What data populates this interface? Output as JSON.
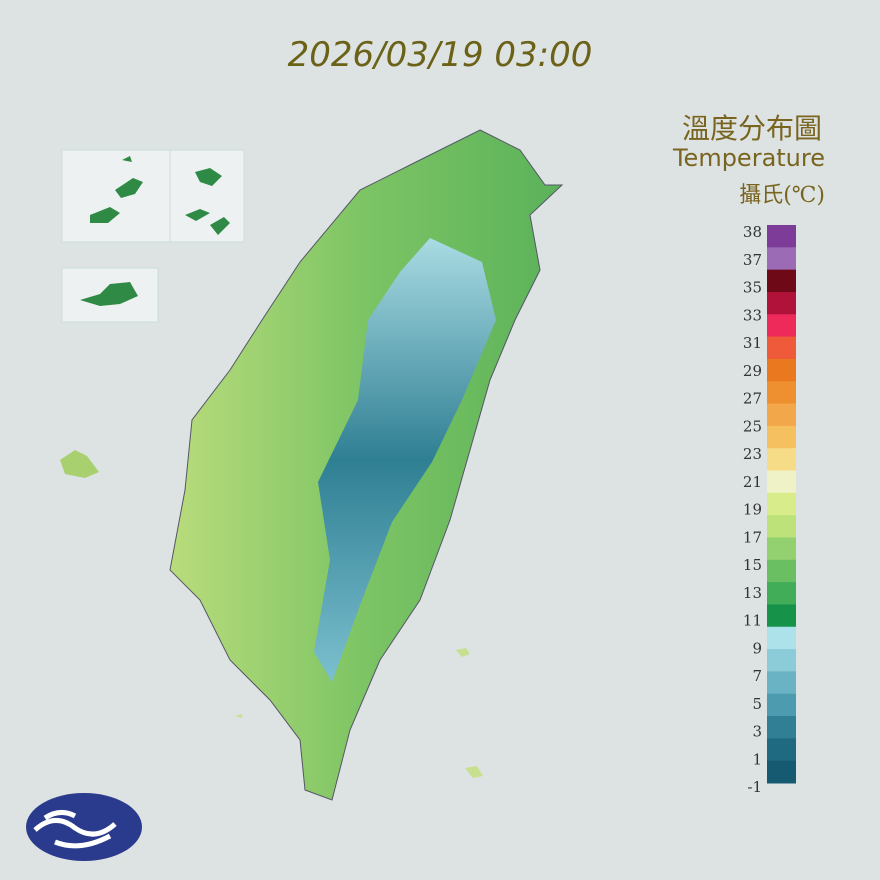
{
  "header": {
    "timestamp": "2026/03/19 03:00",
    "title": "溫度分布圖",
    "subtitle": "Temperature",
    "unit": "攝氏(℃)"
  },
  "legend": {
    "ticks": [
      38,
      37,
      35,
      33,
      31,
      29,
      27,
      25,
      23,
      21,
      19,
      17,
      15,
      13,
      11,
      9,
      7,
      5,
      3,
      1,
      -1
    ],
    "colors": [
      "#7d3c98",
      "#9b6bb5",
      "#6e0a18",
      "#b0123a",
      "#ee2a5a",
      "#ef5b3a",
      "#e9781f",
      "#ef9030",
      "#f2a84a",
      "#f4c060",
      "#f6dc86",
      "#eef2c6",
      "#d8ec8c",
      "#bde27a",
      "#93d070",
      "#6bbf63",
      "#41ad58",
      "#179349",
      "#aee2ea",
      "#8ccbd8",
      "#6ab3c4",
      "#4d9bae",
      "#317f95",
      "#1f6a80",
      "#155a70"
    ]
  }
}
